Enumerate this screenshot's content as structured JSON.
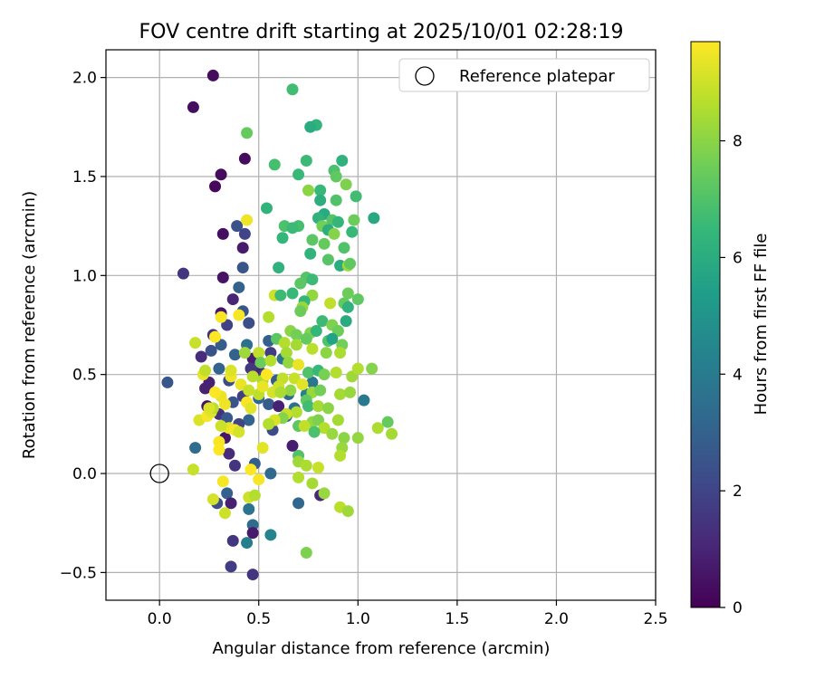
{
  "chart_data": {
    "type": "scatter",
    "title": "FOV centre drift starting at 2025/10/01 02:28:19",
    "xlabel": "Angular distance from reference (arcmin)",
    "ylabel": "Rotation from reference (arcmin)",
    "xlim": [
      -0.27,
      2.5
    ],
    "ylim": [
      -0.64,
      2.14
    ],
    "xticks": [
      0.0,
      0.5,
      1.0,
      1.5,
      2.0,
      2.5
    ],
    "yticks": [
      -0.5,
      0.0,
      0.5,
      1.0,
      1.5,
      2.0
    ],
    "xtick_labels": [
      "0.0",
      "0.5",
      "1.0",
      "1.5",
      "2.0",
      "2.5"
    ],
    "ytick_labels": [
      "−0.5",
      "0.0",
      "0.5",
      "1.0",
      "1.5",
      "2.0"
    ],
    "grid": true,
    "legend": {
      "position": "top-right",
      "entries": [
        "Reference platepar"
      ]
    },
    "reference_point": {
      "x": 0.0,
      "y": 0.0,
      "label": "Reference platepar"
    },
    "colorbar": {
      "label": "Hours from first FF file",
      "range": [
        0,
        9.7
      ],
      "ticks": [
        0,
        2,
        4,
        6,
        8
      ],
      "tick_labels": [
        "0",
        "2",
        "4",
        "6",
        "8"
      ],
      "colormap": "viridis"
    },
    "points": [
      {
        "x": 0.27,
        "y": 2.01,
        "h": 0.3
      },
      {
        "x": 0.17,
        "y": 1.85,
        "h": 0.4
      },
      {
        "x": 0.43,
        "y": 1.59,
        "h": 0.3
      },
      {
        "x": 0.31,
        "y": 1.51,
        "h": 0.3
      },
      {
        "x": 0.28,
        "y": 1.45,
        "h": 0.2
      },
      {
        "x": 0.32,
        "y": 1.21,
        "h": 0.4
      },
      {
        "x": 0.39,
        "y": 1.25,
        "h": 2.4
      },
      {
        "x": 0.43,
        "y": 1.21,
        "h": 2.0
      },
      {
        "x": 0.42,
        "y": 1.14,
        "h": 0.7
      },
      {
        "x": 0.12,
        "y": 1.01,
        "h": 1.5
      },
      {
        "x": 0.42,
        "y": 1.04,
        "h": 2.6
      },
      {
        "x": 0.32,
        "y": 0.99,
        "h": 0.5
      },
      {
        "x": 0.4,
        "y": 0.94,
        "h": 3.0
      },
      {
        "x": 0.37,
        "y": 0.88,
        "h": 1.0
      },
      {
        "x": 0.31,
        "y": 0.81,
        "h": 0.6
      },
      {
        "x": 0.42,
        "y": 0.82,
        "h": 2.6
      },
      {
        "x": 0.45,
        "y": 0.76,
        "h": 2.3
      },
      {
        "x": 0.34,
        "y": 0.75,
        "h": 1.9
      },
      {
        "x": 0.27,
        "y": 0.7,
        "h": 1.4
      },
      {
        "x": 0.31,
        "y": 0.65,
        "h": 2.8
      },
      {
        "x": 0.26,
        "y": 0.62,
        "h": 2.4
      },
      {
        "x": 0.21,
        "y": 0.59,
        "h": 1.2
      },
      {
        "x": 0.38,
        "y": 0.6,
        "h": 3.0
      },
      {
        "x": 0.44,
        "y": 0.65,
        "h": 3.5
      },
      {
        "x": 0.47,
        "y": 0.58,
        "h": 0.8
      },
      {
        "x": 0.5,
        "y": 0.52,
        "h": 1.0
      },
      {
        "x": 0.53,
        "y": 0.5,
        "h": 2.0
      },
      {
        "x": 0.04,
        "y": 0.46,
        "h": 2.6
      },
      {
        "x": 0.25,
        "y": 0.46,
        "h": 0.9
      },
      {
        "x": 0.3,
        "y": 0.53,
        "h": 3.1
      },
      {
        "x": 0.35,
        "y": 0.47,
        "h": 2.2
      },
      {
        "x": 0.23,
        "y": 0.43,
        "h": 0.9
      },
      {
        "x": 0.37,
        "y": 0.36,
        "h": 2.5
      },
      {
        "x": 0.42,
        "y": 0.39,
        "h": 1.8
      },
      {
        "x": 0.5,
        "y": 0.38,
        "h": 3.2
      },
      {
        "x": 0.55,
        "y": 0.35,
        "h": 2.8
      },
      {
        "x": 0.24,
        "y": 0.34,
        "h": 0.5
      },
      {
        "x": 0.3,
        "y": 0.3,
        "h": 1.4
      },
      {
        "x": 0.34,
        "y": 0.28,
        "h": 2.7
      },
      {
        "x": 0.45,
        "y": 0.27,
        "h": 3.1
      },
      {
        "x": 0.4,
        "y": 0.25,
        "h": 2.0
      },
      {
        "x": 0.57,
        "y": 0.22,
        "h": 2.2
      },
      {
        "x": 0.64,
        "y": 0.29,
        "h": 3.4
      },
      {
        "x": 0.67,
        "y": 0.14,
        "h": 0.8
      },
      {
        "x": 0.35,
        "y": 0.1,
        "h": 1.2
      },
      {
        "x": 0.18,
        "y": 0.13,
        "h": 3.4
      },
      {
        "x": 0.33,
        "y": 0.18,
        "h": 0.6
      },
      {
        "x": 0.38,
        "y": 0.04,
        "h": 1.5
      },
      {
        "x": 0.48,
        "y": 0.05,
        "h": 2.9
      },
      {
        "x": 0.56,
        "y": 0.0,
        "h": 3.3
      },
      {
        "x": 0.34,
        "y": -0.1,
        "h": 2.9
      },
      {
        "x": 0.29,
        "y": -0.15,
        "h": 2.3
      },
      {
        "x": 0.36,
        "y": -0.15,
        "h": 0.9
      },
      {
        "x": 0.45,
        "y": -0.18,
        "h": 3.7
      },
      {
        "x": 0.47,
        "y": -0.26,
        "h": 3.4
      },
      {
        "x": 0.47,
        "y": -0.3,
        "h": 0.7
      },
      {
        "x": 0.37,
        "y": -0.34,
        "h": 1.5
      },
      {
        "x": 0.44,
        "y": -0.35,
        "h": 4.2
      },
      {
        "x": 0.56,
        "y": -0.31,
        "h": 4.4
      },
      {
        "x": 0.36,
        "y": -0.47,
        "h": 1.7
      },
      {
        "x": 0.47,
        "y": -0.51,
        "h": 1.5
      },
      {
        "x": 0.7,
        "y": -0.15,
        "h": 3.2
      },
      {
        "x": 0.81,
        "y": -0.11,
        "h": 1.1
      },
      {
        "x": 0.59,
        "y": 0.47,
        "h": 2.8
      },
      {
        "x": 0.6,
        "y": 0.34,
        "h": 0.9
      },
      {
        "x": 0.68,
        "y": 0.33,
        "h": 3.6
      },
      {
        "x": 0.74,
        "y": 0.4,
        "h": 4.1
      },
      {
        "x": 0.77,
        "y": 0.46,
        "h": 3.8
      },
      {
        "x": 0.65,
        "y": 0.4,
        "h": 3.4
      },
      {
        "x": 0.62,
        "y": 0.58,
        "h": 3.7
      },
      {
        "x": 0.55,
        "y": 0.67,
        "h": 2.9
      },
      {
        "x": 0.56,
        "y": 0.61,
        "h": 1.7
      },
      {
        "x": 0.46,
        "y": 0.53,
        "h": 1.6
      },
      {
        "x": 1.03,
        "y": 0.37,
        "h": 4.0
      },
      {
        "x": 1.08,
        "y": 1.29,
        "h": 5.8
      },
      {
        "x": 0.67,
        "y": 1.94,
        "h": 6.7
      },
      {
        "x": 0.79,
        "y": 1.76,
        "h": 6.3
      },
      {
        "x": 0.76,
        "y": 1.75,
        "h": 6.0
      },
      {
        "x": 0.44,
        "y": 1.72,
        "h": 7.4
      },
      {
        "x": 0.58,
        "y": 1.56,
        "h": 6.8
      },
      {
        "x": 0.74,
        "y": 1.58,
        "h": 6.6
      },
      {
        "x": 0.92,
        "y": 1.58,
        "h": 6.2
      },
      {
        "x": 0.7,
        "y": 1.51,
        "h": 6.5
      },
      {
        "x": 0.88,
        "y": 1.53,
        "h": 6.9
      },
      {
        "x": 0.89,
        "y": 1.5,
        "h": 7.3
      },
      {
        "x": 0.94,
        "y": 1.46,
        "h": 7.8
      },
      {
        "x": 0.75,
        "y": 1.43,
        "h": 8.0
      },
      {
        "x": 0.81,
        "y": 1.43,
        "h": 6.5
      },
      {
        "x": 0.99,
        "y": 1.4,
        "h": 6.7
      },
      {
        "x": 0.81,
        "y": 1.38,
        "h": 6.1
      },
      {
        "x": 0.89,
        "y": 1.38,
        "h": 7.0
      },
      {
        "x": 0.54,
        "y": 1.34,
        "h": 6.3
      },
      {
        "x": 0.83,
        "y": 1.31,
        "h": 5.9
      },
      {
        "x": 0.8,
        "y": 1.29,
        "h": 6.2
      },
      {
        "x": 0.87,
        "y": 1.28,
        "h": 7.1
      },
      {
        "x": 0.9,
        "y": 1.27,
        "h": 6.4
      },
      {
        "x": 0.98,
        "y": 1.28,
        "h": 7.5
      },
      {
        "x": 0.63,
        "y": 1.25,
        "h": 6.9
      },
      {
        "x": 0.7,
        "y": 1.25,
        "h": 6.8
      },
      {
        "x": 0.67,
        "y": 1.24,
        "h": 6.6
      },
      {
        "x": 0.82,
        "y": 1.25,
        "h": 7.6
      },
      {
        "x": 0.85,
        "y": 1.23,
        "h": 6.1
      },
      {
        "x": 0.88,
        "y": 1.21,
        "h": 7.9
      },
      {
        "x": 0.97,
        "y": 1.22,
        "h": 6.5
      },
      {
        "x": 0.62,
        "y": 1.19,
        "h": 6.4
      },
      {
        "x": 0.77,
        "y": 1.18,
        "h": 7.2
      },
      {
        "x": 0.83,
        "y": 1.16,
        "h": 7.4
      },
      {
        "x": 0.76,
        "y": 1.11,
        "h": 6.3
      },
      {
        "x": 0.93,
        "y": 1.14,
        "h": 7.0
      },
      {
        "x": 0.85,
        "y": 1.08,
        "h": 7.1
      },
      {
        "x": 0.91,
        "y": 1.05,
        "h": 6.0
      },
      {
        "x": 0.95,
        "y": 1.05,
        "h": 8.3
      },
      {
        "x": 0.96,
        "y": 1.06,
        "h": 7.3
      },
      {
        "x": 0.6,
        "y": 1.04,
        "h": 6.2
      },
      {
        "x": 0.74,
        "y": 0.99,
        "h": 7.1
      },
      {
        "x": 0.77,
        "y": 0.98,
        "h": 6.6
      },
      {
        "x": 0.71,
        "y": 0.96,
        "h": 7.2
      },
      {
        "x": 0.77,
        "y": 0.9,
        "h": 8.1
      },
      {
        "x": 0.67,
        "y": 0.91,
        "h": 6.5
      },
      {
        "x": 0.73,
        "y": 0.87,
        "h": 6.4
      },
      {
        "x": 0.95,
        "y": 0.91,
        "h": 7.5
      },
      {
        "x": 0.58,
        "y": 0.9,
        "h": 9.0
      },
      {
        "x": 0.61,
        "y": 0.9,
        "h": 6.6
      },
      {
        "x": 0.86,
        "y": 0.86,
        "h": 8.8
      },
      {
        "x": 0.93,
        "y": 0.86,
        "h": 7.4
      },
      {
        "x": 1.0,
        "y": 0.88,
        "h": 7.3
      },
      {
        "x": 0.72,
        "y": 0.84,
        "h": 8.2
      },
      {
        "x": 0.95,
        "y": 0.84,
        "h": 6.2
      },
      {
        "x": 0.55,
        "y": 0.79,
        "h": 8.6
      },
      {
        "x": 0.71,
        "y": 0.82,
        "h": 7.5
      },
      {
        "x": 0.82,
        "y": 0.77,
        "h": 6.6
      },
      {
        "x": 0.94,
        "y": 0.77,
        "h": 5.9
      },
      {
        "x": 0.76,
        "y": 0.71,
        "h": 7.9
      },
      {
        "x": 0.87,
        "y": 0.75,
        "h": 7.8
      },
      {
        "x": 0.9,
        "y": 0.72,
        "h": 7.5
      },
      {
        "x": 0.66,
        "y": 0.72,
        "h": 8.0
      },
      {
        "x": 0.69,
        "y": 0.7,
        "h": 7.6
      },
      {
        "x": 0.79,
        "y": 0.72,
        "h": 6.4
      },
      {
        "x": 0.59,
        "y": 0.68,
        "h": 7.2
      },
      {
        "x": 0.63,
        "y": 0.66,
        "h": 8.6
      },
      {
        "x": 0.69,
        "y": 0.65,
        "h": 8.4
      },
      {
        "x": 0.74,
        "y": 0.68,
        "h": 7.4
      },
      {
        "x": 0.85,
        "y": 0.67,
        "h": 7.0
      },
      {
        "x": 0.92,
        "y": 0.65,
        "h": 7.6
      },
      {
        "x": 0.87,
        "y": 0.68,
        "h": 5.6
      },
      {
        "x": 0.77,
        "y": 0.63,
        "h": 8.7
      },
      {
        "x": 0.64,
        "y": 0.61,
        "h": 8.4
      },
      {
        "x": 0.84,
        "y": 0.61,
        "h": 8.0
      },
      {
        "x": 0.91,
        "y": 0.61,
        "h": 8.5
      },
      {
        "x": 0.5,
        "y": 0.61,
        "h": 8.8
      },
      {
        "x": 0.43,
        "y": 0.61,
        "h": 8.3
      },
      {
        "x": 0.51,
        "y": 0.56,
        "h": 7.5
      },
      {
        "x": 0.56,
        "y": 0.57,
        "h": 8.6
      },
      {
        "x": 0.65,
        "y": 0.56,
        "h": 8.1
      },
      {
        "x": 0.7,
        "y": 0.55,
        "h": 9.4
      },
      {
        "x": 0.75,
        "y": 0.51,
        "h": 7.0
      },
      {
        "x": 0.8,
        "y": 0.52,
        "h": 6.5
      },
      {
        "x": 0.83,
        "y": 0.5,
        "h": 7.7
      },
      {
        "x": 0.89,
        "y": 0.51,
        "h": 8.6
      },
      {
        "x": 0.97,
        "y": 0.49,
        "h": 8.3
      },
      {
        "x": 1.0,
        "y": 0.53,
        "h": 8.6
      },
      {
        "x": 1.07,
        "y": 0.53,
        "h": 7.9
      },
      {
        "x": 0.68,
        "y": 0.48,
        "h": 8.9
      },
      {
        "x": 0.72,
        "y": 0.45,
        "h": 9.3
      },
      {
        "x": 0.62,
        "y": 0.48,
        "h": 8.8
      },
      {
        "x": 0.6,
        "y": 0.44,
        "h": 9.0
      },
      {
        "x": 0.52,
        "y": 0.47,
        "h": 8.5
      },
      {
        "x": 0.57,
        "y": 0.41,
        "h": 9.1
      },
      {
        "x": 0.77,
        "y": 0.41,
        "h": 8.2
      },
      {
        "x": 0.81,
        "y": 0.42,
        "h": 7.6
      },
      {
        "x": 0.91,
        "y": 0.4,
        "h": 8.4
      },
      {
        "x": 0.96,
        "y": 0.41,
        "h": 8.2
      },
      {
        "x": 0.66,
        "y": 0.42,
        "h": 8.1
      },
      {
        "x": 0.61,
        "y": 0.41,
        "h": 8.5
      },
      {
        "x": 0.74,
        "y": 0.37,
        "h": 7.3
      },
      {
        "x": 0.75,
        "y": 0.34,
        "h": 6.7
      },
      {
        "x": 0.8,
        "y": 0.34,
        "h": 8.4
      },
      {
        "x": 0.85,
        "y": 0.33,
        "h": 8.0
      },
      {
        "x": 0.69,
        "y": 0.31,
        "h": 8.6
      },
      {
        "x": 0.64,
        "y": 0.3,
        "h": 8.9
      },
      {
        "x": 0.62,
        "y": 0.28,
        "h": 7.9
      },
      {
        "x": 0.58,
        "y": 0.27,
        "h": 9.2
      },
      {
        "x": 0.55,
        "y": 0.25,
        "h": 8.6
      },
      {
        "x": 0.77,
        "y": 0.26,
        "h": 8.1
      },
      {
        "x": 0.8,
        "y": 0.27,
        "h": 7.8
      },
      {
        "x": 0.9,
        "y": 0.27,
        "h": 8.4
      },
      {
        "x": 0.7,
        "y": 0.24,
        "h": 7.2
      },
      {
        "x": 0.73,
        "y": 0.24,
        "h": 8.8
      },
      {
        "x": 0.83,
        "y": 0.23,
        "h": 8.6
      },
      {
        "x": 0.78,
        "y": 0.21,
        "h": 6.9
      },
      {
        "x": 0.87,
        "y": 0.2,
        "h": 8.2
      },
      {
        "x": 0.93,
        "y": 0.18,
        "h": 8.0
      },
      {
        "x": 1.1,
        "y": 0.23,
        "h": 8.5
      },
      {
        "x": 1.15,
        "y": 0.26,
        "h": 7.4
      },
      {
        "x": 1.17,
        "y": 0.2,
        "h": 8.4
      },
      {
        "x": 1.0,
        "y": 0.18,
        "h": 8.1
      },
      {
        "x": 0.92,
        "y": 0.13,
        "h": 8.2
      },
      {
        "x": 0.91,
        "y": 0.09,
        "h": 8.6
      },
      {
        "x": 0.7,
        "y": 0.09,
        "h": 7.0
      },
      {
        "x": 0.7,
        "y": 0.06,
        "h": 8.3
      },
      {
        "x": 0.74,
        "y": 0.04,
        "h": 8.5
      },
      {
        "x": 0.8,
        "y": 0.03,
        "h": 8.9
      },
      {
        "x": 0.7,
        "y": -0.02,
        "h": 8.6
      },
      {
        "x": 0.77,
        "y": -0.05,
        "h": 8.4
      },
      {
        "x": 0.83,
        "y": -0.1,
        "h": 8.2
      },
      {
        "x": 0.91,
        "y": -0.17,
        "h": 8.7
      },
      {
        "x": 0.95,
        "y": -0.19,
        "h": 8.3
      },
      {
        "x": 0.74,
        "y": -0.4,
        "h": 7.8
      },
      {
        "x": 0.17,
        "y": 0.02,
        "h": 8.9
      },
      {
        "x": 0.2,
        "y": 0.27,
        "h": 9.2
      },
      {
        "x": 0.24,
        "y": 0.29,
        "h": 9.6
      },
      {
        "x": 0.26,
        "y": 0.31,
        "h": 9.3
      },
      {
        "x": 0.31,
        "y": 0.39,
        "h": 9.4
      },
      {
        "x": 0.28,
        "y": 0.41,
        "h": 9.7
      },
      {
        "x": 0.27,
        "y": 0.33,
        "h": 8.7
      },
      {
        "x": 0.33,
        "y": 0.35,
        "h": 9.5
      },
      {
        "x": 0.35,
        "y": 0.23,
        "h": 9.4
      },
      {
        "x": 0.38,
        "y": 0.22,
        "h": 9.6
      },
      {
        "x": 0.31,
        "y": 0.24,
        "h": 9.0
      },
      {
        "x": 0.4,
        "y": 0.21,
        "h": 9.1
      },
      {
        "x": 0.3,
        "y": 0.16,
        "h": 9.6
      },
      {
        "x": 0.3,
        "y": 0.12,
        "h": 9.7
      },
      {
        "x": 0.25,
        "y": 0.33,
        "h": 9.2
      },
      {
        "x": 0.22,
        "y": 0.5,
        "h": 9.4
      },
      {
        "x": 0.23,
        "y": 0.52,
        "h": 8.8
      },
      {
        "x": 0.18,
        "y": 0.66,
        "h": 8.9
      },
      {
        "x": 0.28,
        "y": 0.69,
        "h": 9.7
      },
      {
        "x": 0.31,
        "y": 0.79,
        "h": 9.6
      },
      {
        "x": 0.4,
        "y": 0.8,
        "h": 9.6
      },
      {
        "x": 0.36,
        "y": 0.49,
        "h": 9.5
      },
      {
        "x": 0.36,
        "y": 0.52,
        "h": 9.2
      },
      {
        "x": 0.41,
        "y": 0.45,
        "h": 9.4
      },
      {
        "x": 0.45,
        "y": 0.42,
        "h": 8.9
      },
      {
        "x": 0.44,
        "y": 0.36,
        "h": 9.6
      },
      {
        "x": 0.46,
        "y": 0.33,
        "h": 9.3
      },
      {
        "x": 0.5,
        "y": 0.4,
        "h": 8.8
      },
      {
        "x": 0.52,
        "y": 0.44,
        "h": 9.4
      },
      {
        "x": 0.54,
        "y": 0.5,
        "h": 9.7
      },
      {
        "x": 0.47,
        "y": 0.49,
        "h": 8.7
      },
      {
        "x": 0.44,
        "y": 1.28,
        "h": 9.5
      },
      {
        "x": 0.32,
        "y": -0.04,
        "h": 9.6
      },
      {
        "x": 0.46,
        "y": 0.02,
        "h": 9.7
      },
      {
        "x": 0.5,
        "y": -0.03,
        "h": 9.6
      },
      {
        "x": 0.52,
        "y": 0.13,
        "h": 9.3
      },
      {
        "x": 0.27,
        "y": -0.13,
        "h": 9.1
      },
      {
        "x": 0.45,
        "y": -0.12,
        "h": 9.0
      },
      {
        "x": 0.48,
        "y": -0.11,
        "h": 8.6
      },
      {
        "x": 0.33,
        "y": -0.2,
        "h": 9.0
      }
    ]
  }
}
